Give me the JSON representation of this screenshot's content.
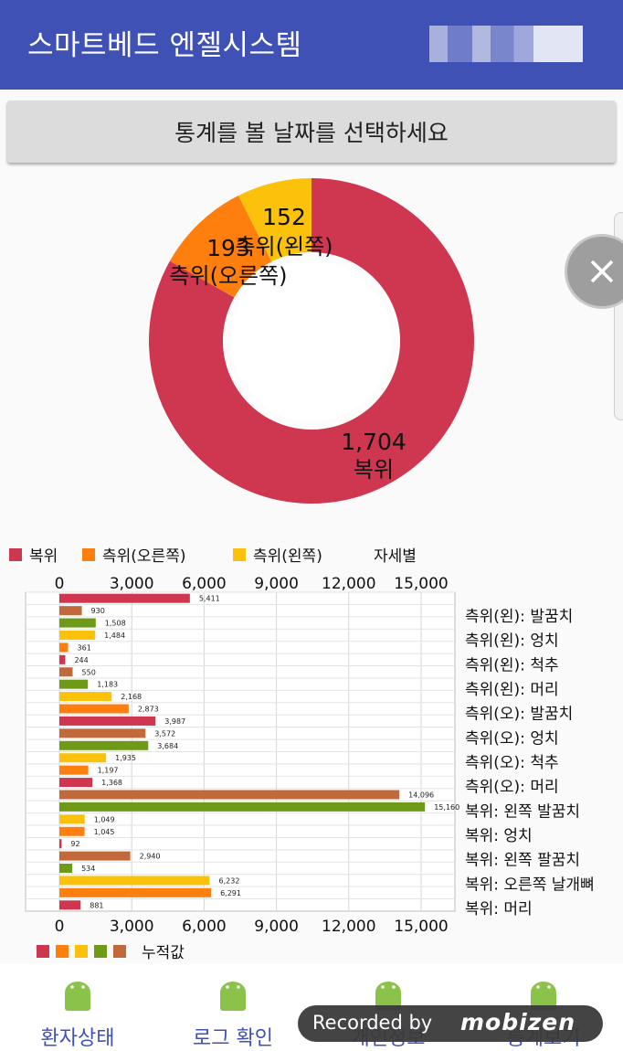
{
  "app": {
    "title": "스마트베드 엔젤시스템"
  },
  "date_button": {
    "label": "통계를 볼 날짜를 선택하세요"
  },
  "pie": {
    "slices": [
      {
        "label": "복위",
        "value": 1704,
        "display": "1,704",
        "color": "#cf3650"
      },
      {
        "label": "측위(오른쪽)",
        "value": 193,
        "display": "193",
        "color": "#ff7f0e"
      },
      {
        "label": "측위(왼쪽)",
        "value": 152,
        "display": "152",
        "color": "#fcc10a"
      }
    ]
  },
  "pie_legend": {
    "items": [
      {
        "label": "복위",
        "color": "#cf3650"
      },
      {
        "label": "측위(오른쪽)",
        "color": "#ff7f0e"
      },
      {
        "label": "측위(왼쪽)",
        "color": "#fcc10a"
      }
    ],
    "extra": "자세별"
  },
  "chart_data": {
    "type": "bar",
    "orientation": "horizontal",
    "xlim": [
      0,
      15000
    ],
    "xticks": [
      "0",
      "3,000",
      "6,000",
      "9,000",
      "12,000",
      "15,000"
    ],
    "legend_label": "누적값",
    "legend_colors": [
      "#cf3650",
      "#ff7f0e",
      "#fcc10a",
      "#6e9a18",
      "#c1693a"
    ],
    "bars": [
      {
        "value": 5411,
        "label": "5,411",
        "color": "#cf3650"
      },
      {
        "value": 930,
        "label": "930",
        "color": "#c1693a"
      },
      {
        "value": 1508,
        "label": "1,508",
        "color": "#6e9a18"
      },
      {
        "value": 1484,
        "label": "1,484",
        "color": "#fcc10a"
      },
      {
        "value": 361,
        "label": "361",
        "color": "#ff7f0e"
      },
      {
        "value": 244,
        "label": "244",
        "color": "#cf3650"
      },
      {
        "value": 550,
        "label": "550",
        "color": "#c1693a"
      },
      {
        "value": 1183,
        "label": "1,183",
        "color": "#6e9a18"
      },
      {
        "value": 2168,
        "label": "2,168",
        "color": "#fcc10a"
      },
      {
        "value": 2873,
        "label": "2,873",
        "color": "#ff7f0e"
      },
      {
        "value": 3987,
        "label": "3,987",
        "color": "#cf3650"
      },
      {
        "value": 3572,
        "label": "3,572",
        "color": "#c1693a"
      },
      {
        "value": 3684,
        "label": "3,684",
        "color": "#6e9a18"
      },
      {
        "value": 1935,
        "label": "1,935",
        "color": "#fcc10a"
      },
      {
        "value": 1197,
        "label": "1,197",
        "color": "#ff7f0e"
      },
      {
        "value": 1368,
        "label": "1,368",
        "color": "#cf3650"
      },
      {
        "value": 14096,
        "label": "14,096",
        "color": "#c1693a"
      },
      {
        "value": 15160,
        "label": "15,160",
        "color": "#6e9a18"
      },
      {
        "value": 1049,
        "label": "1,049",
        "color": "#fcc10a"
      },
      {
        "value": 1045,
        "label": "1,045",
        "color": "#ff7f0e"
      },
      {
        "value": 92,
        "label": "92",
        "color": "#cf3650"
      },
      {
        "value": 2940,
        "label": "2,940",
        "color": "#c1693a"
      },
      {
        "value": 534,
        "label": "534",
        "color": "#6e9a18"
      },
      {
        "value": 6232,
        "label": "6,232",
        "color": "#fcc10a"
      },
      {
        "value": 6291,
        "label": "6,291",
        "color": "#ff7f0e"
      },
      {
        "value": 881,
        "label": "881",
        "color": "#cf3650"
      }
    ],
    "category_labels": [
      "측위(왼): 발꿈치",
      "측위(왼): 엉치",
      "측위(왼): 척추",
      "측위(왼): 머리",
      "측위(오): 발꿈치",
      "측위(오): 엉치",
      "측위(오): 척추",
      "측위(오): 머리",
      "복위: 왼쪽 발꿈치",
      "복위: 엉치",
      "복위: 왼쪽 팔꿈치",
      "복위: 오른쪽 날개뼈",
      "복위: 머리"
    ]
  },
  "bottom_nav": {
    "items": [
      {
        "label": "환자상태",
        "icon": "android-icon"
      },
      {
        "label": "로그 확인",
        "icon": "android-icon"
      },
      {
        "label": "개인정보",
        "icon": "android-icon"
      },
      {
        "label": "통계보기",
        "icon": "android-icon"
      }
    ]
  },
  "overlay": {
    "recorded_text": "Recorded by",
    "brand": "mobizen"
  }
}
